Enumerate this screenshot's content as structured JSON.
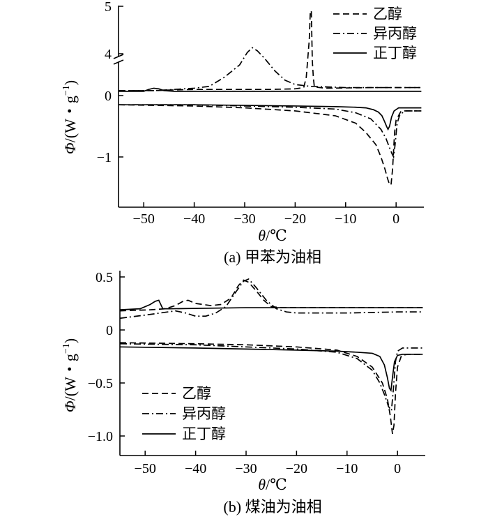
{
  "chart_data": [
    {
      "type": "line",
      "id": "a",
      "caption": "(a) 甲苯为油相",
      "xlabel_symbol": "θ",
      "xlabel_unit": "/℃",
      "ylabel_symbol": "Φ",
      "ylabel_unit_prefix": "/(W・g",
      "ylabel_unit_exp": "−1",
      "ylabel_unit_suffix": ")",
      "xlim": [
        -55,
        5.5
      ],
      "xticks": [
        -50,
        -40,
        -30,
        -20,
        -10,
        0
      ],
      "xtick_labels": [
        "−50",
        "−40",
        "−30",
        "−20",
        "−10",
        "0"
      ],
      "yticks_upper": [
        4,
        5
      ],
      "yticks_upper_labels": [
        "4",
        "5"
      ],
      "yticks_lower": [
        0,
        -1
      ],
      "yticks_lower_labels": [
        "0",
        "−1"
      ],
      "ylim_lower": [
        -1.5,
        0.08
      ],
      "ylim_upper": [
        3.8,
        5.1
      ],
      "y_axis_break": true,
      "legend_position": "top-right",
      "series": [
        {
          "name": "乙醇",
          "dash": "dashed",
          "heating": [
            [
              -55,
              0.08
            ],
            [
              -48,
              0.08
            ],
            [
              -45,
              0.09
            ],
            [
              -40,
              0.1
            ],
            [
              -30,
              0.1
            ],
            [
              -25,
              0.1
            ],
            [
              -20,
              0.11
            ],
            [
              -18.3,
              0.13
            ],
            [
              -17.8,
              0.3
            ],
            [
              -17.5,
              3.9
            ],
            [
              -17.2,
              4.3
            ],
            [
              -17.0,
              4.9
            ],
            [
              -16.8,
              4.9
            ],
            [
              -16.6,
              3.85
            ],
            [
              -16.4,
              0.3
            ],
            [
              -16.2,
              0.14
            ],
            [
              -14,
              0.12
            ],
            [
              -5,
              0.13
            ],
            [
              5,
              0.13
            ]
          ],
          "cooling": [
            [
              -55,
              -0.15
            ],
            [
              -40,
              -0.17
            ],
            [
              -30,
              -0.2
            ],
            [
              -20,
              -0.25
            ],
            [
              -12,
              -0.33
            ],
            [
              -8,
              -0.45
            ],
            [
              -6,
              -0.6
            ],
            [
              -4,
              -0.8
            ],
            [
              -3,
              -1.0
            ],
            [
              -2.2,
              -1.2
            ],
            [
              -1.7,
              -1.35
            ],
            [
              -1.3,
              -1.45
            ],
            [
              -1.0,
              -1.45
            ],
            [
              -0.7,
              -1.2
            ],
            [
              -0.3,
              -0.6
            ],
            [
              0,
              -0.4
            ],
            [
              1,
              -0.25
            ],
            [
              5,
              -0.25
            ]
          ]
        },
        {
          "name": "异丙醇",
          "dash": "dashdot",
          "heating": [
            [
              -55,
              0.08
            ],
            [
              -48,
              0.08
            ],
            [
              -44,
              0.1
            ],
            [
              -40,
              0.12
            ],
            [
              -37,
              0.15
            ],
            [
              -34,
              0.3
            ],
            [
              -31,
              0.5
            ],
            [
              -29.5,
              0.7
            ],
            [
              -28.5,
              0.78
            ],
            [
              -27.5,
              0.73
            ],
            [
              -26,
              0.6
            ],
            [
              -24,
              0.4
            ],
            [
              -22,
              0.25
            ],
            [
              -20,
              0.18
            ],
            [
              -17,
              0.15
            ],
            [
              -10,
              0.13
            ],
            [
              0,
              0.13
            ],
            [
              5,
              0.13
            ]
          ],
          "cooling": [
            [
              -55,
              -0.15
            ],
            [
              -40,
              -0.15
            ],
            [
              -30,
              -0.17
            ],
            [
              -20,
              -0.19
            ],
            [
              -12,
              -0.22
            ],
            [
              -8,
              -0.28
            ],
            [
              -5,
              -0.38
            ],
            [
              -3,
              -0.55
            ],
            [
              -2,
              -0.7
            ],
            [
              -1.3,
              -0.85
            ],
            [
              -0.8,
              -0.95
            ],
            [
              -0.5,
              -1.0
            ],
            [
              -0.2,
              -0.8
            ],
            [
              0.2,
              -0.45
            ],
            [
              0.8,
              -0.3
            ],
            [
              2,
              -0.25
            ],
            [
              5,
              -0.25
            ]
          ]
        },
        {
          "name": "正丁醇",
          "dash": "solid",
          "heating": [
            [
              -55,
              0.07
            ],
            [
              -50,
              0.07
            ],
            [
              -49,
              0.1
            ],
            [
              -48,
              0.12
            ],
            [
              -47,
              0.11
            ],
            [
              -46,
              0.08
            ],
            [
              -44,
              0.07
            ],
            [
              -30,
              0.07
            ],
            [
              -10,
              0.07
            ],
            [
              0,
              0.07
            ],
            [
              5,
              0.07
            ]
          ],
          "cooling": [
            [
              -55,
              -0.15
            ],
            [
              -40,
              -0.15
            ],
            [
              -30,
              -0.16
            ],
            [
              -20,
              -0.17
            ],
            [
              -12,
              -0.18
            ],
            [
              -8,
              -0.19
            ],
            [
              -6,
              -0.2
            ],
            [
              -4.5,
              -0.23
            ],
            [
              -3.5,
              -0.27
            ],
            [
              -2.8,
              -0.33
            ],
            [
              -2.3,
              -0.42
            ],
            [
              -1.9,
              -0.5
            ],
            [
              -1.6,
              -0.55
            ],
            [
              -1.3,
              -0.5
            ],
            [
              -0.9,
              -0.35
            ],
            [
              -0.4,
              -0.25
            ],
            [
              0.5,
              -0.2
            ],
            [
              5,
              -0.2
            ]
          ]
        }
      ]
    },
    {
      "type": "line",
      "id": "b",
      "caption": "(b) 煤油为油相",
      "xlabel_symbol": "θ",
      "xlabel_unit": "/℃",
      "ylabel_symbol": "Φ",
      "ylabel_unit_prefix": "/(W・g",
      "ylabel_unit_exp": "−1",
      "ylabel_unit_suffix": ")",
      "xlim": [
        -55,
        5.5
      ],
      "ylim": [
        -1.18,
        0.52
      ],
      "xticks": [
        -50,
        -40,
        -30,
        -20,
        -10,
        0
      ],
      "xtick_labels": [
        "−50",
        "−40",
        "−30",
        "−20",
        "−10",
        "0"
      ],
      "yticks": [
        0.5,
        0,
        -0.5,
        -1.0
      ],
      "ytick_labels": [
        "0.5",
        "0",
        "−0.5",
        "−1.0"
      ],
      "legend_position": "bottom-left",
      "series": [
        {
          "name": "乙醇",
          "dash": "dashed",
          "heating": [
            [
              -55,
              0.18
            ],
            [
              -49,
              0.19
            ],
            [
              -46,
              0.2
            ],
            [
              -44,
              0.23
            ],
            [
              -42.5,
              0.27
            ],
            [
              -41.5,
              0.28
            ],
            [
              -40,
              0.25
            ],
            [
              -37,
              0.23
            ],
            [
              -35,
              0.24
            ],
            [
              -33,
              0.3
            ],
            [
              -31.5,
              0.42
            ],
            [
              -30.5,
              0.47
            ],
            [
              -29.5,
              0.45
            ],
            [
              -28,
              0.37
            ],
            [
              -26.5,
              0.28
            ],
            [
              -25,
              0.22
            ],
            [
              -23,
              0.21
            ],
            [
              -10,
              0.21
            ],
            [
              0,
              0.21
            ],
            [
              5,
              0.21
            ]
          ],
          "cooling": [
            [
              -55,
              -0.12
            ],
            [
              -40,
              -0.13
            ],
            [
              -30,
              -0.14
            ],
            [
              -20,
              -0.16
            ],
            [
              -12,
              -0.19
            ],
            [
              -8,
              -0.25
            ],
            [
              -5,
              -0.35
            ],
            [
              -3,
              -0.5
            ],
            [
              -2,
              -0.65
            ],
            [
              -1.4,
              -0.82
            ],
            [
              -1.0,
              -0.98
            ],
            [
              -0.7,
              -0.9
            ],
            [
              -0.4,
              -0.6
            ],
            [
              0,
              -0.35
            ],
            [
              0.8,
              -0.24
            ],
            [
              2,
              -0.23
            ],
            [
              5,
              -0.23
            ]
          ]
        },
        {
          "name": "异丙醇",
          "dash": "dashdot",
          "heating": [
            [
              -55,
              0.11
            ],
            [
              -50,
              0.14
            ],
            [
              -47,
              0.16
            ],
            [
              -44,
              0.18
            ],
            [
              -42,
              0.16
            ],
            [
              -40,
              0.13
            ],
            [
              -38,
              0.13
            ],
            [
              -36,
              0.16
            ],
            [
              -34,
              0.22
            ],
            [
              -32,
              0.36
            ],
            [
              -30.5,
              0.46
            ],
            [
              -29.5,
              0.48
            ],
            [
              -28,
              0.4
            ],
            [
              -26,
              0.28
            ],
            [
              -24,
              0.2
            ],
            [
              -22,
              0.17
            ],
            [
              -20,
              0.16
            ],
            [
              -10,
              0.16
            ],
            [
              0,
              0.17
            ],
            [
              5,
              0.17
            ]
          ],
          "cooling": [
            [
              -55,
              -0.13
            ],
            [
              -40,
              -0.14
            ],
            [
              -30,
              -0.16
            ],
            [
              -20,
              -0.18
            ],
            [
              -12,
              -0.21
            ],
            [
              -8,
              -0.27
            ],
            [
              -5,
              -0.38
            ],
            [
              -3.5,
              -0.5
            ],
            [
              -2.5,
              -0.62
            ],
            [
              -1.8,
              -0.72
            ],
            [
              -1.2,
              -0.76
            ],
            [
              -0.8,
              -0.55
            ],
            [
              -0.4,
              -0.3
            ],
            [
              0,
              -0.2
            ],
            [
              1,
              -0.17
            ],
            [
              5,
              -0.17
            ]
          ]
        },
        {
          "name": "正丁醇",
          "dash": "solid",
          "heating": [
            [
              -55,
              0.19
            ],
            [
              -51,
              0.2
            ],
            [
              -49,
              0.24
            ],
            [
              -48,
              0.27
            ],
            [
              -47.3,
              0.28
            ],
            [
              -46.5,
              0.2
            ],
            [
              -45,
              0.2
            ],
            [
              -30,
              0.21
            ],
            [
              -10,
              0.21
            ],
            [
              0,
              0.21
            ],
            [
              5,
              0.21
            ]
          ],
          "cooling": [
            [
              -55,
              -0.16
            ],
            [
              -40,
              -0.17
            ],
            [
              -30,
              -0.18
            ],
            [
              -20,
              -0.19
            ],
            [
              -12,
              -0.2
            ],
            [
              -8,
              -0.21
            ],
            [
              -5,
              -0.22
            ],
            [
              -3.5,
              -0.25
            ],
            [
              -2.6,
              -0.33
            ],
            [
              -2.0,
              -0.45
            ],
            [
              -1.6,
              -0.55
            ],
            [
              -1.3,
              -0.57
            ],
            [
              -1.0,
              -0.45
            ],
            [
              -0.6,
              -0.3
            ],
            [
              0,
              -0.24
            ],
            [
              1,
              -0.23
            ],
            [
              5,
              -0.23
            ]
          ]
        }
      ]
    }
  ]
}
